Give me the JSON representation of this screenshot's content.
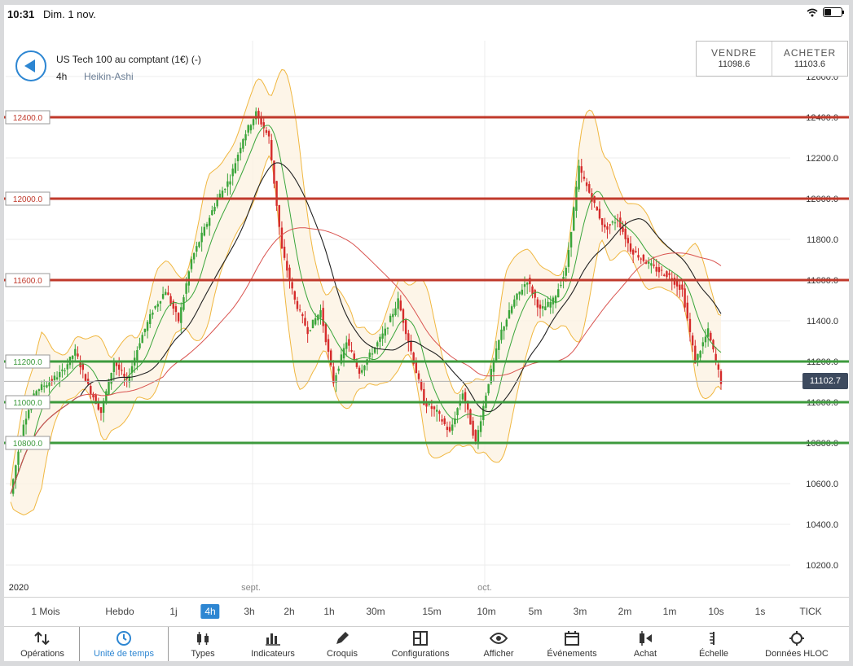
{
  "status": {
    "time": "10:31",
    "date": "Dim. 1 nov."
  },
  "instrument": {
    "title": "US Tech 100 au comptant (1€) (-)",
    "timeframe": "4h",
    "chart_type": "Heikin-Ashi"
  },
  "trade": {
    "sell_label": "VENDRE",
    "sell_price": "11098.6",
    "buy_label": "ACHETER",
    "buy_price": "11103.6"
  },
  "current_price": "11102.7",
  "x_labels": [
    "2020",
    "sept.",
    "oct."
  ],
  "colors": {
    "accent": "#2d86d2",
    "resistance": "#c0392b",
    "support": "#3d9a3d",
    "bull": "#3aa53a",
    "bear": "#d52b2b",
    "band": "#f0b740",
    "ma_slow": "#222222",
    "ma_long": "#d9534f"
  },
  "chart_data": {
    "type": "candlestick",
    "variant": "Heikin-Ashi",
    "y_axis_ticks": [
      "12600.0",
      "12400.0",
      "12200.0",
      "12000.0",
      "11800.0",
      "11600.0",
      "11400.0",
      "11200.0",
      "11000.0",
      "10800.0",
      "10600.0",
      "10400.0",
      "10200.0"
    ],
    "ylim": [
      10100,
      12800
    ],
    "grid": true,
    "x_axis_labels": [
      "2020",
      "sept.",
      "oct."
    ],
    "horizontal_levels": [
      {
        "value": 12400,
        "label": "12400.0",
        "kind": "resistance"
      },
      {
        "value": 12000,
        "label": "12000.0",
        "kind": "resistance"
      },
      {
        "value": 11600,
        "label": "11600.0",
        "kind": "resistance"
      },
      {
        "value": 11200,
        "label": "11200.0",
        "kind": "support"
      },
      {
        "value": 11000,
        "label": "11000.0",
        "kind": "support"
      },
      {
        "value": 10800,
        "label": "10800.0",
        "kind": "support"
      }
    ],
    "last_price": 11102.7,
    "close_series": [
      10550,
      10900,
      11060,
      11100,
      11150,
      11250,
      11080,
      10950,
      11200,
      11100,
      11300,
      11450,
      11550,
      11400,
      11700,
      11850,
      12000,
      12100,
      12300,
      12420,
      12300,
      11750,
      11500,
      11350,
      11450,
      11100,
      11300,
      11150,
      11250,
      11350,
      11500,
      11250,
      11000,
      10950,
      10850,
      11050,
      10800,
      11100,
      11350,
      11500,
      11600,
      11450,
      11500,
      11650,
      12150,
      12000,
      11850,
      11900,
      11750,
      11700,
      11650,
      11620,
      11550,
      11200,
      11350,
      11100
    ]
  },
  "timeframes": [
    "1 Mois",
    "Hebdo",
    "1j",
    "4h",
    "3h",
    "2h",
    "1h",
    "30m",
    "15m",
    "10m",
    "5m",
    "3m",
    "2m",
    "1m",
    "10s",
    "1s",
    "TICK"
  ],
  "active_timeframe": "4h",
  "toolbar": [
    "Opérations",
    "Unité de temps",
    "Types",
    "Indicateurs",
    "Croquis",
    "Configurations",
    "Afficher",
    "Événements",
    "Achat",
    "Échelle",
    "Données HLOC"
  ],
  "toolbar_icons": [
    "up-down-arrows-icon",
    "clock-icon",
    "candlestick-icon",
    "bar-chart-icon",
    "pencil-icon",
    "layout-icon",
    "eye-icon",
    "calendar-icon",
    "buy-icon",
    "scale-icon",
    "crosshair-icon"
  ]
}
